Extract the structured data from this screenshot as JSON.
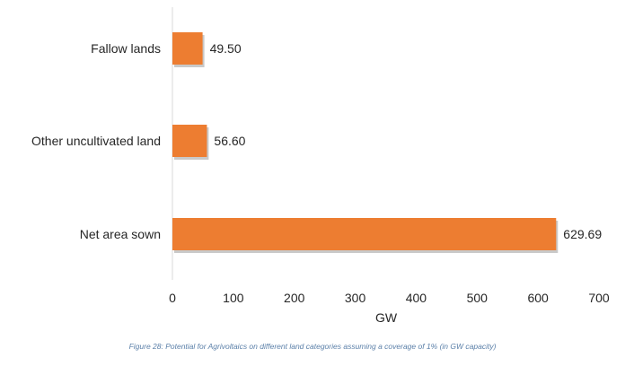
{
  "chart_data": {
    "type": "bar",
    "orientation": "horizontal",
    "categories": [
      "Fallow lands",
      "Other uncultivated land",
      "Net area sown"
    ],
    "values": [
      49.5,
      56.6,
      629.69
    ],
    "value_labels": [
      "49.50",
      "56.60",
      "629.69"
    ],
    "xlabel": "GW",
    "ylabel": "",
    "xlim": [
      0,
      700
    ],
    "xticks": [
      "0",
      "100",
      "200",
      "300",
      "400",
      "500",
      "600",
      "700"
    ],
    "bar_color": "#ed7d31",
    "grid": false,
    "legend": "none"
  },
  "caption": "Figure 28: Potential for Agrivoltaics on different land categories assuming a coverage of 1% (in GW capacity)"
}
